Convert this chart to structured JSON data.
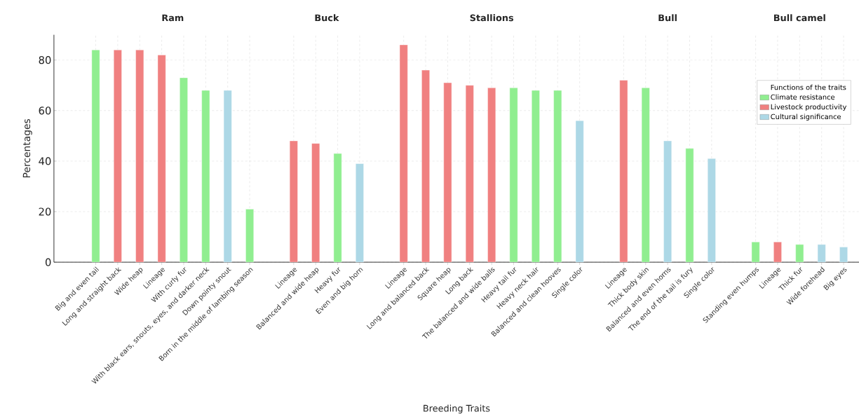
{
  "chart_data": {
    "type": "bar",
    "xlabel": "Breeding Traits",
    "ylabel": "Percentages",
    "legend_title": "Functions of the traits",
    "categories": [
      "Big and even tail",
      "Long and straight back",
      "Wide heap",
      "Lineage",
      "With curly fur",
      "With black ears, snouts, eyes, and darker neck",
      "Down pointy snout",
      "Born in the middle of lambing season",
      null,
      "Lineage",
      "Balanced and wide heap",
      "Heavy fur",
      "Even and big horn",
      null,
      "Lineage",
      "Long and balanced back",
      "Square heap",
      "Long back",
      "The balanced and wide balls",
      "Heavy tail fur",
      "Heavy neck hair",
      "Balanced and clean hooves",
      "Single color",
      null,
      "Lineage",
      "Thick body skin",
      "Balanced and even horns",
      "The end of the tail is fury",
      "Single color",
      null,
      "Standing even humps",
      "Lineage",
      "Thick fur",
      "Wide forehead",
      "Big eyes"
    ],
    "series": [
      {
        "name": "Climate resistance",
        "color": "#90ee90",
        "values": [
          84,
          null,
          null,
          null,
          73,
          68,
          null,
          21,
          null,
          null,
          null,
          43,
          null,
          null,
          null,
          null,
          null,
          null,
          null,
          69,
          68,
          68,
          null,
          null,
          null,
          69,
          null,
          45,
          null,
          null,
          8,
          null,
          7,
          null,
          null
        ]
      },
      {
        "name": "Livestock productivity",
        "color": "#f08080",
        "values": [
          null,
          84,
          84,
          82,
          null,
          null,
          null,
          null,
          null,
          48,
          47,
          null,
          null,
          null,
          86,
          76,
          71,
          70,
          69,
          null,
          null,
          null,
          null,
          null,
          72,
          null,
          null,
          null,
          null,
          null,
          null,
          8,
          null,
          null,
          null
        ]
      },
      {
        "name": "Cultural significance",
        "color": "#add8e6",
        "values": [
          null,
          null,
          null,
          null,
          null,
          null,
          68,
          null,
          null,
          null,
          null,
          null,
          39,
          null,
          null,
          null,
          null,
          null,
          null,
          null,
          null,
          null,
          56,
          null,
          null,
          null,
          48,
          null,
          41,
          null,
          null,
          null,
          null,
          7,
          6
        ]
      }
    ],
    "annotations": [
      "Ram",
      "Buck",
      "Stallions",
      "Bull",
      "Bull camel"
    ],
    "ylim": [
      0,
      90
    ],
    "yticks": [
      0,
      20,
      40,
      60,
      80
    ],
    "grid": true,
    "legend": "top right"
  }
}
